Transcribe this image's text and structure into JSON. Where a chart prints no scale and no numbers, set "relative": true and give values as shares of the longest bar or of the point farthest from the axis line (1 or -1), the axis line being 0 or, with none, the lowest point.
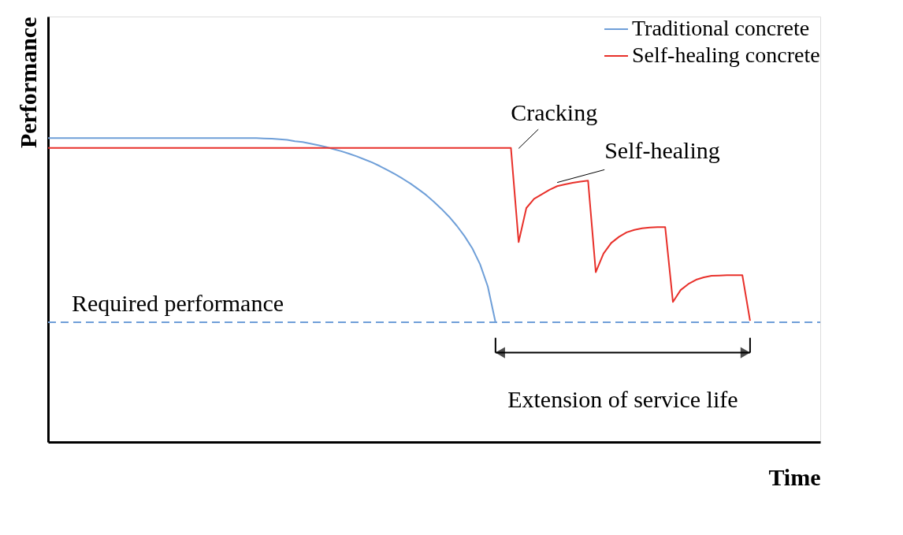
{
  "chart_data": {
    "type": "line",
    "relative": true,
    "xlabel": "Time",
    "ylabel": "Performance",
    "tick_labels": false,
    "grid": false,
    "legend": "top right",
    "marker": "none",
    "line_style": "solid",
    "categories": [
      null,
      null,
      null,
      null,
      null,
      null,
      null,
      null,
      null,
      null,
      null,
      null,
      null,
      null,
      null,
      null,
      null,
      null,
      null,
      null,
      null,
      null,
      null,
      null,
      null,
      null,
      null,
      null,
      null,
      null,
      null,
      null,
      null,
      null,
      null,
      null,
      null,
      null,
      null,
      null,
      null,
      null,
      null,
      null,
      null,
      null,
      null,
      null,
      null,
      null,
      null,
      null,
      null,
      null,
      null,
      null,
      null,
      null,
      null,
      null,
      null,
      null,
      null,
      null,
      null,
      null,
      null,
      null,
      null,
      null,
      null,
      null,
      null,
      null,
      null,
      null,
      null,
      null,
      null,
      null,
      null,
      null,
      null,
      null,
      null,
      null,
      null,
      null,
      null,
      null,
      null,
      null
    ],
    "series": [
      {
        "name": "Traditional concrete",
        "color": "#6f9fd8",
        "values": [
          1,
          1,
          1,
          1,
          1,
          1,
          1,
          1,
          1,
          1,
          1,
          1,
          1,
          1,
          1,
          1,
          1,
          1,
          1,
          1,
          1,
          1,
          1,
          1,
          1,
          1,
          1,
          1,
          0.999,
          0.998,
          0.996,
          0.994,
          0.99,
          0.987,
          0.982,
          0.977,
          0.971,
          0.964,
          0.957,
          0.949,
          0.94,
          0.93,
          0.92,
          0.908,
          0.895,
          0.881,
          0.866,
          0.85,
          0.832,
          0.813,
          0.791,
          0.767,
          0.741,
          0.711,
          0.677,
          0.637,
          0.585,
          0.512,
          0.394,
          null,
          null,
          null,
          null,
          null,
          null,
          null,
          null,
          null,
          null,
          null,
          null,
          null,
          null,
          null,
          null,
          null,
          null,
          null,
          null,
          null,
          null,
          null,
          null,
          null,
          null,
          null,
          null,
          null,
          null,
          null,
          null,
          null
        ]
      },
      {
        "name": "Self-healing concrete",
        "color": "#e8302a",
        "values": [
          0.968,
          0.968,
          0.968,
          0.968,
          0.968,
          0.968,
          0.968,
          0.968,
          0.968,
          0.968,
          0.968,
          0.968,
          0.968,
          0.968,
          0.968,
          0.968,
          0.968,
          0.968,
          0.968,
          0.968,
          0.968,
          0.968,
          0.968,
          0.968,
          0.968,
          0.968,
          0.968,
          0.968,
          0.968,
          0.968,
          0.968,
          0.968,
          0.968,
          0.968,
          0.968,
          0.968,
          0.968,
          0.968,
          0.968,
          0.968,
          0.968,
          0.968,
          0.968,
          0.968,
          0.968,
          0.968,
          0.968,
          0.968,
          0.968,
          0.968,
          0.968,
          0.968,
          0.968,
          0.968,
          0.968,
          0.968,
          0.968,
          0.968,
          0.968,
          0.968,
          0.968,
          0.658,
          0.77,
          0.8,
          0.815,
          0.83,
          0.842,
          0.848,
          0.853,
          0.857,
          0.86,
          0.559,
          0.62,
          0.655,
          0.675,
          0.69,
          0.698,
          0.703,
          0.706,
          0.707,
          0.707,
          0.461,
          0.5,
          0.52,
          0.534,
          0.542,
          0.547,
          0.548,
          0.549,
          0.549,
          0.549,
          0.399
        ]
      }
    ],
    "ref_lines": [
      {
        "axis": "y",
        "value": 0.394,
        "label": "Required performance",
        "color": "#6f9fd8",
        "line_style": "dashed"
      }
    ],
    "annotations": [
      "Cracking",
      "Self-healing",
      "Extension of service life"
    ]
  }
}
